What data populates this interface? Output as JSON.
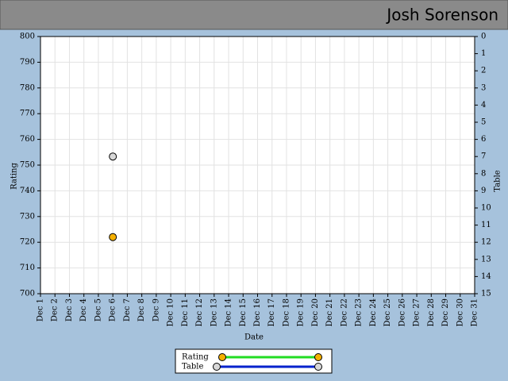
{
  "header": {
    "title": "Josh Sorenson"
  },
  "chart_data": {
    "type": "line",
    "x_label": "Date",
    "y_label": "Rating",
    "y2_label": "Table",
    "categories": [
      "Dec 1",
      "Dec 2",
      "Dec 3",
      "Dec 4",
      "Dec 5",
      "Dec 6",
      "Dec 7",
      "Dec 8",
      "Dec 9",
      "Dec 10",
      "Dec 11",
      "Dec 12",
      "Dec 13",
      "Dec 14",
      "Dec 15",
      "Dec 16",
      "Dec 17",
      "Dec 18",
      "Dec 19",
      "Dec 20",
      "Dec 21",
      "Dec 22",
      "Dec 23",
      "Dec 24",
      "Dec 25",
      "Dec 26",
      "Dec 27",
      "Dec 28",
      "Dec 29",
      "Dec 30",
      "Dec 31"
    ],
    "series": [
      {
        "name": "Rating",
        "color": "#22dd22",
        "marker_color": "#f5b000",
        "values": [
          null,
          null,
          null,
          null,
          null,
          722,
          null,
          null,
          null,
          null,
          null,
          null,
          null,
          null,
          null,
          null,
          null,
          null,
          null,
          null,
          null,
          null,
          null,
          null,
          null,
          null,
          null,
          null,
          null,
          null,
          null
        ]
      },
      {
        "name": "Table",
        "color": "#0022cc",
        "marker_color": "#d8d8d8",
        "axis": "y2",
        "values": [
          null,
          null,
          null,
          null,
          null,
          7,
          null,
          null,
          null,
          null,
          null,
          null,
          null,
          null,
          null,
          null,
          null,
          null,
          null,
          null,
          null,
          null,
          null,
          null,
          null,
          null,
          null,
          null,
          null,
          null,
          null
        ]
      }
    ],
    "ylim": [
      700,
      800
    ],
    "yticks": [
      700,
      710,
      720,
      730,
      740,
      750,
      760,
      770,
      780,
      790,
      800
    ],
    "y2lim": [
      15,
      0
    ],
    "y2ticks": [
      0,
      1,
      2,
      3,
      4,
      5,
      6,
      7,
      8,
      9,
      10,
      11,
      12,
      13,
      14,
      15
    ],
    "grid": true,
    "legend": "bottom"
  }
}
